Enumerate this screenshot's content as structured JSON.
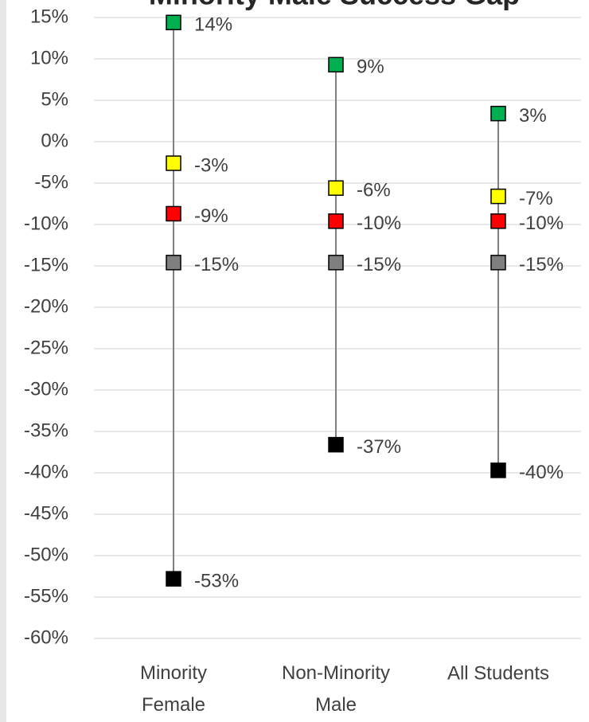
{
  "chart_data": {
    "type": "line",
    "title": "Minority Male Success Gap",
    "categories": [
      "Minority Female",
      "Non-Minority Male",
      "All Students"
    ],
    "series": [
      {
        "color": "#00b050",
        "values": [
          14.4,
          9.3,
          3.4
        ],
        "value_labels": [
          "14%",
          "9%",
          "3%"
        ]
      },
      {
        "color": "#ffff00",
        "values": [
          -2.6,
          -5.6,
          -6.6
        ],
        "value_labels": [
          "-3%",
          "-6%",
          "-7%"
        ]
      },
      {
        "color": "#ff0000",
        "values": [
          -8.7,
          -9.6,
          -9.6
        ],
        "value_labels": [
          "-9%",
          "-10%",
          "-10%"
        ]
      },
      {
        "color": "#7f7f7f",
        "values": [
          -14.6,
          -14.6,
          -14.6
        ],
        "value_labels": [
          "-15%",
          "-15%",
          "-15%"
        ]
      },
      {
        "color": "#000000",
        "values": [
          -52.8,
          -36.6,
          -39.7
        ],
        "value_labels": [
          "-53%",
          "-37%",
          "-40%"
        ]
      }
    ],
    "ylim": [
      -60,
      15
    ],
    "yticks": [
      {
        "value": -60,
        "label": "-60%"
      },
      {
        "value": -55,
        "label": "-55%"
      },
      {
        "value": -50,
        "label": "-50%"
      },
      {
        "value": -45,
        "label": "-45%"
      },
      {
        "value": -40,
        "label": "-40%"
      },
      {
        "value": -35,
        "label": "-35%"
      },
      {
        "value": -30,
        "label": "-30%"
      },
      {
        "value": -25,
        "label": "-25%"
      },
      {
        "value": -20,
        "label": "-20%"
      },
      {
        "value": -15,
        "label": "-15%"
      },
      {
        "value": -10,
        "label": "-10%"
      },
      {
        "value": -5,
        "label": "-5%"
      },
      {
        "value": 0,
        "label": "0%"
      },
      {
        "value": 5,
        "label": "5%"
      },
      {
        "value": 10,
        "label": "10%"
      },
      {
        "value": 15,
        "label": "15%"
      }
    ],
    "grid": true
  }
}
